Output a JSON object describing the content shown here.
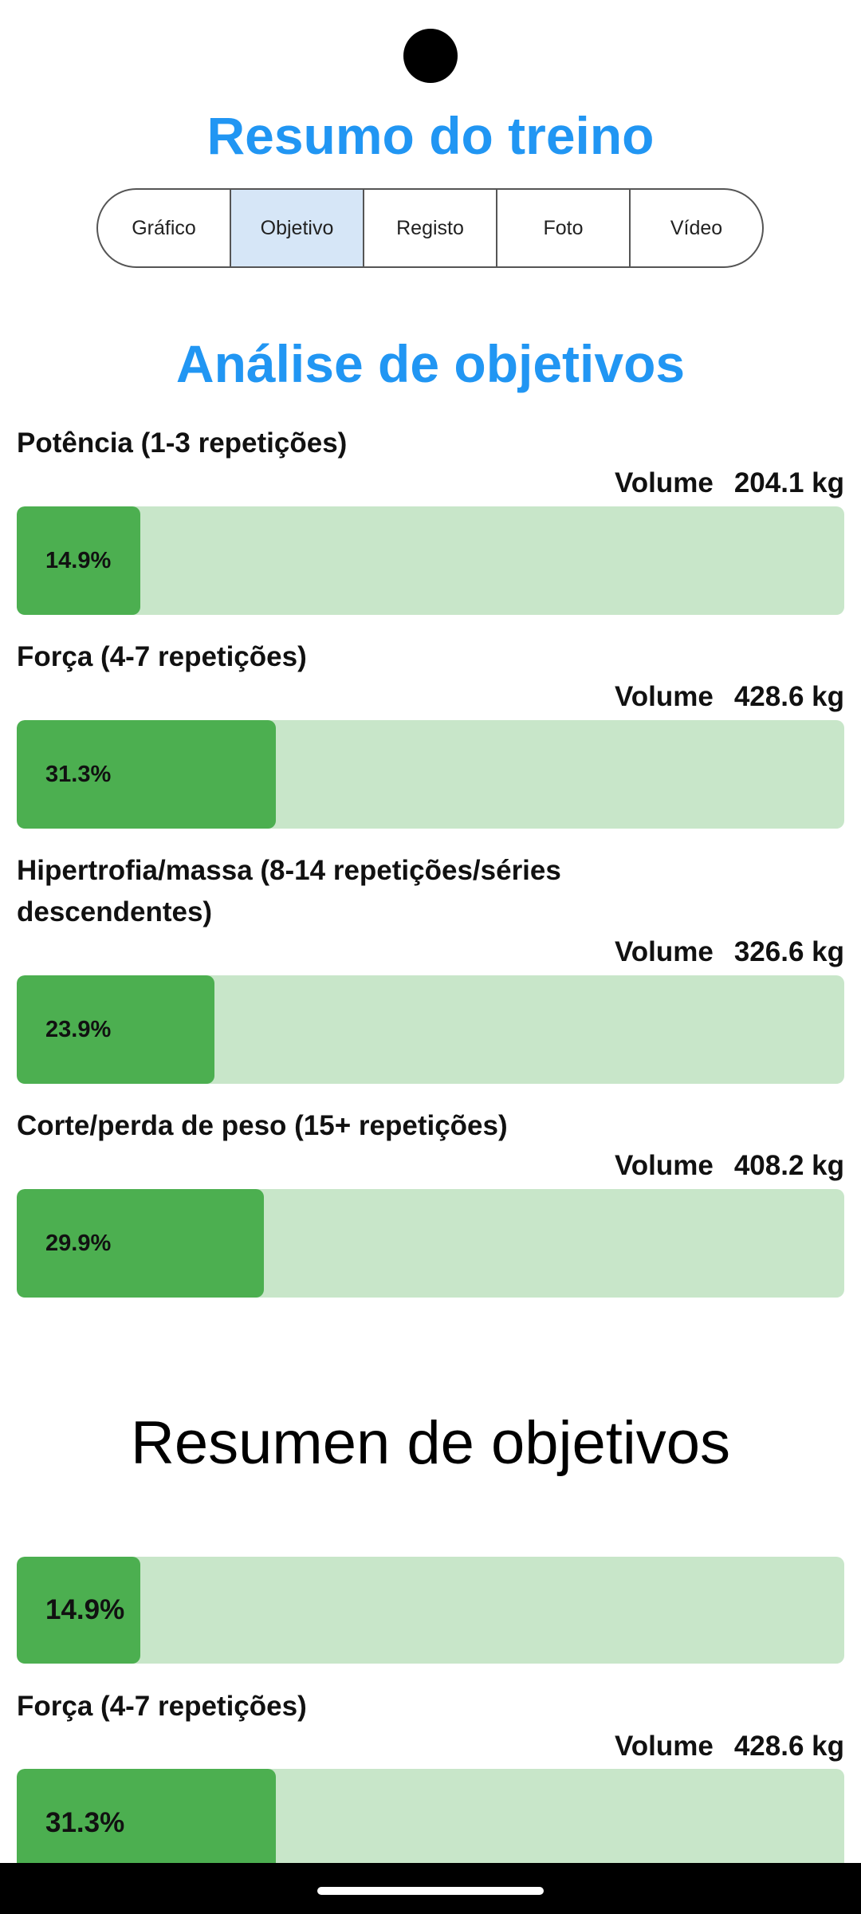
{
  "app_title": "Resumo do treino",
  "tabs": [
    {
      "label": "Gráfico"
    },
    {
      "label": "Objetivo"
    },
    {
      "label": "Registo"
    },
    {
      "label": "Foto"
    },
    {
      "label": "Vídeo"
    }
  ],
  "active_tab": "Objetivo",
  "analysis_title": "Análise de objetivos",
  "volume_label": "Volume",
  "goals": [
    {
      "label": "Potência (1-3 repetições)",
      "volume": "204.1 kg",
      "percent_text": "14.9%",
      "percent": 14.9
    },
    {
      "label": "Força (4-7 repetições)",
      "volume": "428.6 kg",
      "percent_text": "31.3%",
      "percent": 31.3
    },
    {
      "label": "Hipertrofia/massa (8-14 repetições/séries descendentes)",
      "volume": "326.6 kg",
      "percent_text": "23.9%",
      "percent": 23.9
    },
    {
      "label": "Corte/perda de peso (15+ repetições)",
      "volume": "408.2 kg",
      "percent_text": "29.9%",
      "percent": 29.9
    }
  ],
  "summary_title": "Resumen de objetivos",
  "summary_goals": [
    {
      "label": "",
      "volume": "",
      "percent_text": "14.9%",
      "percent": 14.9
    },
    {
      "label": "Força (4-7 repetições)",
      "volume": "428.6 kg",
      "percent_text": "31.3%",
      "percent": 31.3
    }
  ],
  "colors": {
    "accent_blue": "#2196f3",
    "bar_fill": "#4caf50",
    "bar_track": "#c8e6c9",
    "active_tab_bg": "#d6e6f7"
  }
}
